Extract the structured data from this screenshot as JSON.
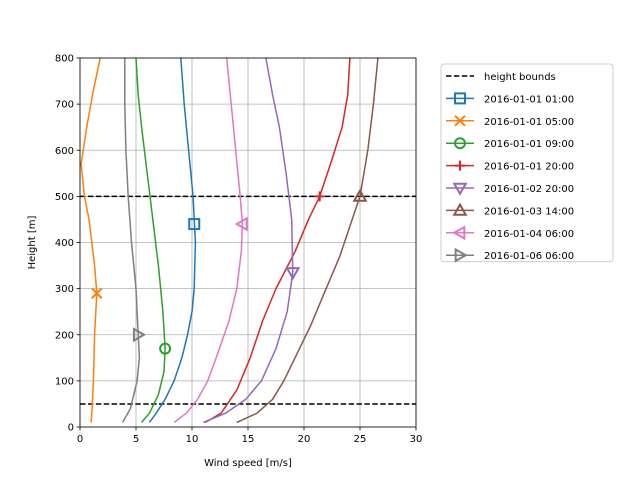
{
  "chart_data": {
    "type": "line",
    "title": "",
    "xlabel": "Wind speed [m/s]",
    "ylabel": "Height [m]",
    "xlim": [
      0,
      30
    ],
    "ylim": [
      0,
      800
    ],
    "xticks": [
      0,
      5,
      10,
      15,
      20,
      25,
      30
    ],
    "yticks": [
      0,
      100,
      200,
      300,
      400,
      500,
      600,
      700,
      800
    ],
    "grid": true,
    "legend_position": "outside-right",
    "reference_lines": [
      {
        "name": "height bounds",
        "values": [
          50,
          500
        ],
        "color": "#000000",
        "style": "dashed"
      }
    ],
    "series": [
      {
        "name": "2016-01-01 01:00",
        "color": "#1f77b4",
        "marker": "square",
        "points": [
          [
            6.2,
            10
          ],
          [
            6.8,
            30
          ],
          [
            7.6,
            60
          ],
          [
            8.4,
            100
          ],
          [
            9.1,
            150
          ],
          [
            9.6,
            200
          ],
          [
            10.0,
            250
          ],
          [
            10.2,
            300
          ],
          [
            10.3,
            400
          ],
          [
            10.1,
            500
          ],
          [
            9.7,
            600
          ],
          [
            9.3,
            700
          ],
          [
            9.0,
            800
          ]
        ],
        "marker_point": [
          10.2,
          440
        ]
      },
      {
        "name": "2016-01-01 05:00",
        "color": "#ff7f0e",
        "marker": "x",
        "points": [
          [
            1.0,
            10
          ],
          [
            1.1,
            50
          ],
          [
            1.2,
            100
          ],
          [
            1.3,
            200
          ],
          [
            1.5,
            290
          ],
          [
            1.3,
            350
          ],
          [
            0.8,
            450
          ],
          [
            0.4,
            500
          ],
          [
            0.1,
            570
          ],
          [
            0.6,
            650
          ],
          [
            1.2,
            730
          ],
          [
            1.8,
            800
          ]
        ],
        "marker_point": [
          1.5,
          290
        ]
      },
      {
        "name": "2016-01-01 09:00",
        "color": "#2ca02c",
        "marker": "circle",
        "points": [
          [
            5.5,
            10
          ],
          [
            6.2,
            30
          ],
          [
            7.0,
            70
          ],
          [
            7.5,
            120
          ],
          [
            7.6,
            170
          ],
          [
            7.4,
            250
          ],
          [
            7.0,
            350
          ],
          [
            6.5,
            450
          ],
          [
            6.0,
            550
          ],
          [
            5.5,
            650
          ],
          [
            5.2,
            720
          ],
          [
            5.0,
            800
          ]
        ],
        "marker_point": [
          7.6,
          170
        ]
      },
      {
        "name": "2016-01-01 20:00",
        "color": "#d62728",
        "marker": "plus",
        "points": [
          [
            11.2,
            10
          ],
          [
            12.6,
            30
          ],
          [
            14.0,
            80
          ],
          [
            15.2,
            150
          ],
          [
            16.3,
            230
          ],
          [
            17.5,
            300
          ],
          [
            19.2,
            380
          ],
          [
            20.4,
            450
          ],
          [
            21.4,
            500
          ],
          [
            22.5,
            580
          ],
          [
            23.4,
            650
          ],
          [
            23.9,
            720
          ],
          [
            24.1,
            800
          ]
        ],
        "marker_point": [
          21.4,
          500
        ]
      },
      {
        "name": "2016-01-02 20:00",
        "color": "#9467bd",
        "marker": "triangle-down",
        "points": [
          [
            11.0,
            10
          ],
          [
            13.0,
            30
          ],
          [
            14.8,
            60
          ],
          [
            16.2,
            100
          ],
          [
            17.5,
            170
          ],
          [
            18.5,
            250
          ],
          [
            19.0,
            335
          ],
          [
            18.9,
            450
          ],
          [
            18.4,
            550
          ],
          [
            17.8,
            650
          ],
          [
            17.2,
            720
          ],
          [
            16.6,
            800
          ]
        ],
        "marker_point": [
          19.0,
          335
        ]
      },
      {
        "name": "2016-01-03 14:00",
        "color": "#8c564b",
        "marker": "triangle-up",
        "points": [
          [
            14.0,
            10
          ],
          [
            15.8,
            30
          ],
          [
            17.2,
            60
          ],
          [
            18.2,
            100
          ],
          [
            19.4,
            160
          ],
          [
            20.6,
            220
          ],
          [
            21.8,
            290
          ],
          [
            23.2,
            370
          ],
          [
            24.3,
            450
          ],
          [
            25.0,
            500
          ],
          [
            25.7,
            600
          ],
          [
            26.2,
            700
          ],
          [
            26.6,
            800
          ]
        ],
        "marker_point": [
          25.0,
          500
        ]
      },
      {
        "name": "2016-01-04 06:00",
        "color": "#e377c2",
        "marker": "triangle-left",
        "points": [
          [
            8.4,
            10
          ],
          [
            9.5,
            30
          ],
          [
            10.5,
            60
          ],
          [
            11.4,
            100
          ],
          [
            12.3,
            160
          ],
          [
            13.3,
            230
          ],
          [
            14.0,
            300
          ],
          [
            14.4,
            380
          ],
          [
            14.5,
            440
          ],
          [
            14.3,
            500
          ],
          [
            13.9,
            600
          ],
          [
            13.5,
            700
          ],
          [
            13.1,
            800
          ]
        ],
        "marker_point": [
          14.5,
          440
        ]
      },
      {
        "name": "2016-01-06 06:00",
        "color": "#7f7f7f",
        "marker": "triangle-right",
        "points": [
          [
            3.8,
            10
          ],
          [
            4.5,
            40
          ],
          [
            5.1,
            100
          ],
          [
            5.3,
            150
          ],
          [
            5.2,
            200
          ],
          [
            5.0,
            300
          ],
          [
            4.6,
            400
          ],
          [
            4.3,
            500
          ],
          [
            4.1,
            600
          ],
          [
            4.0,
            700
          ],
          [
            4.0,
            800
          ]
        ],
        "marker_point": [
          5.2,
          200
        ]
      }
    ]
  }
}
